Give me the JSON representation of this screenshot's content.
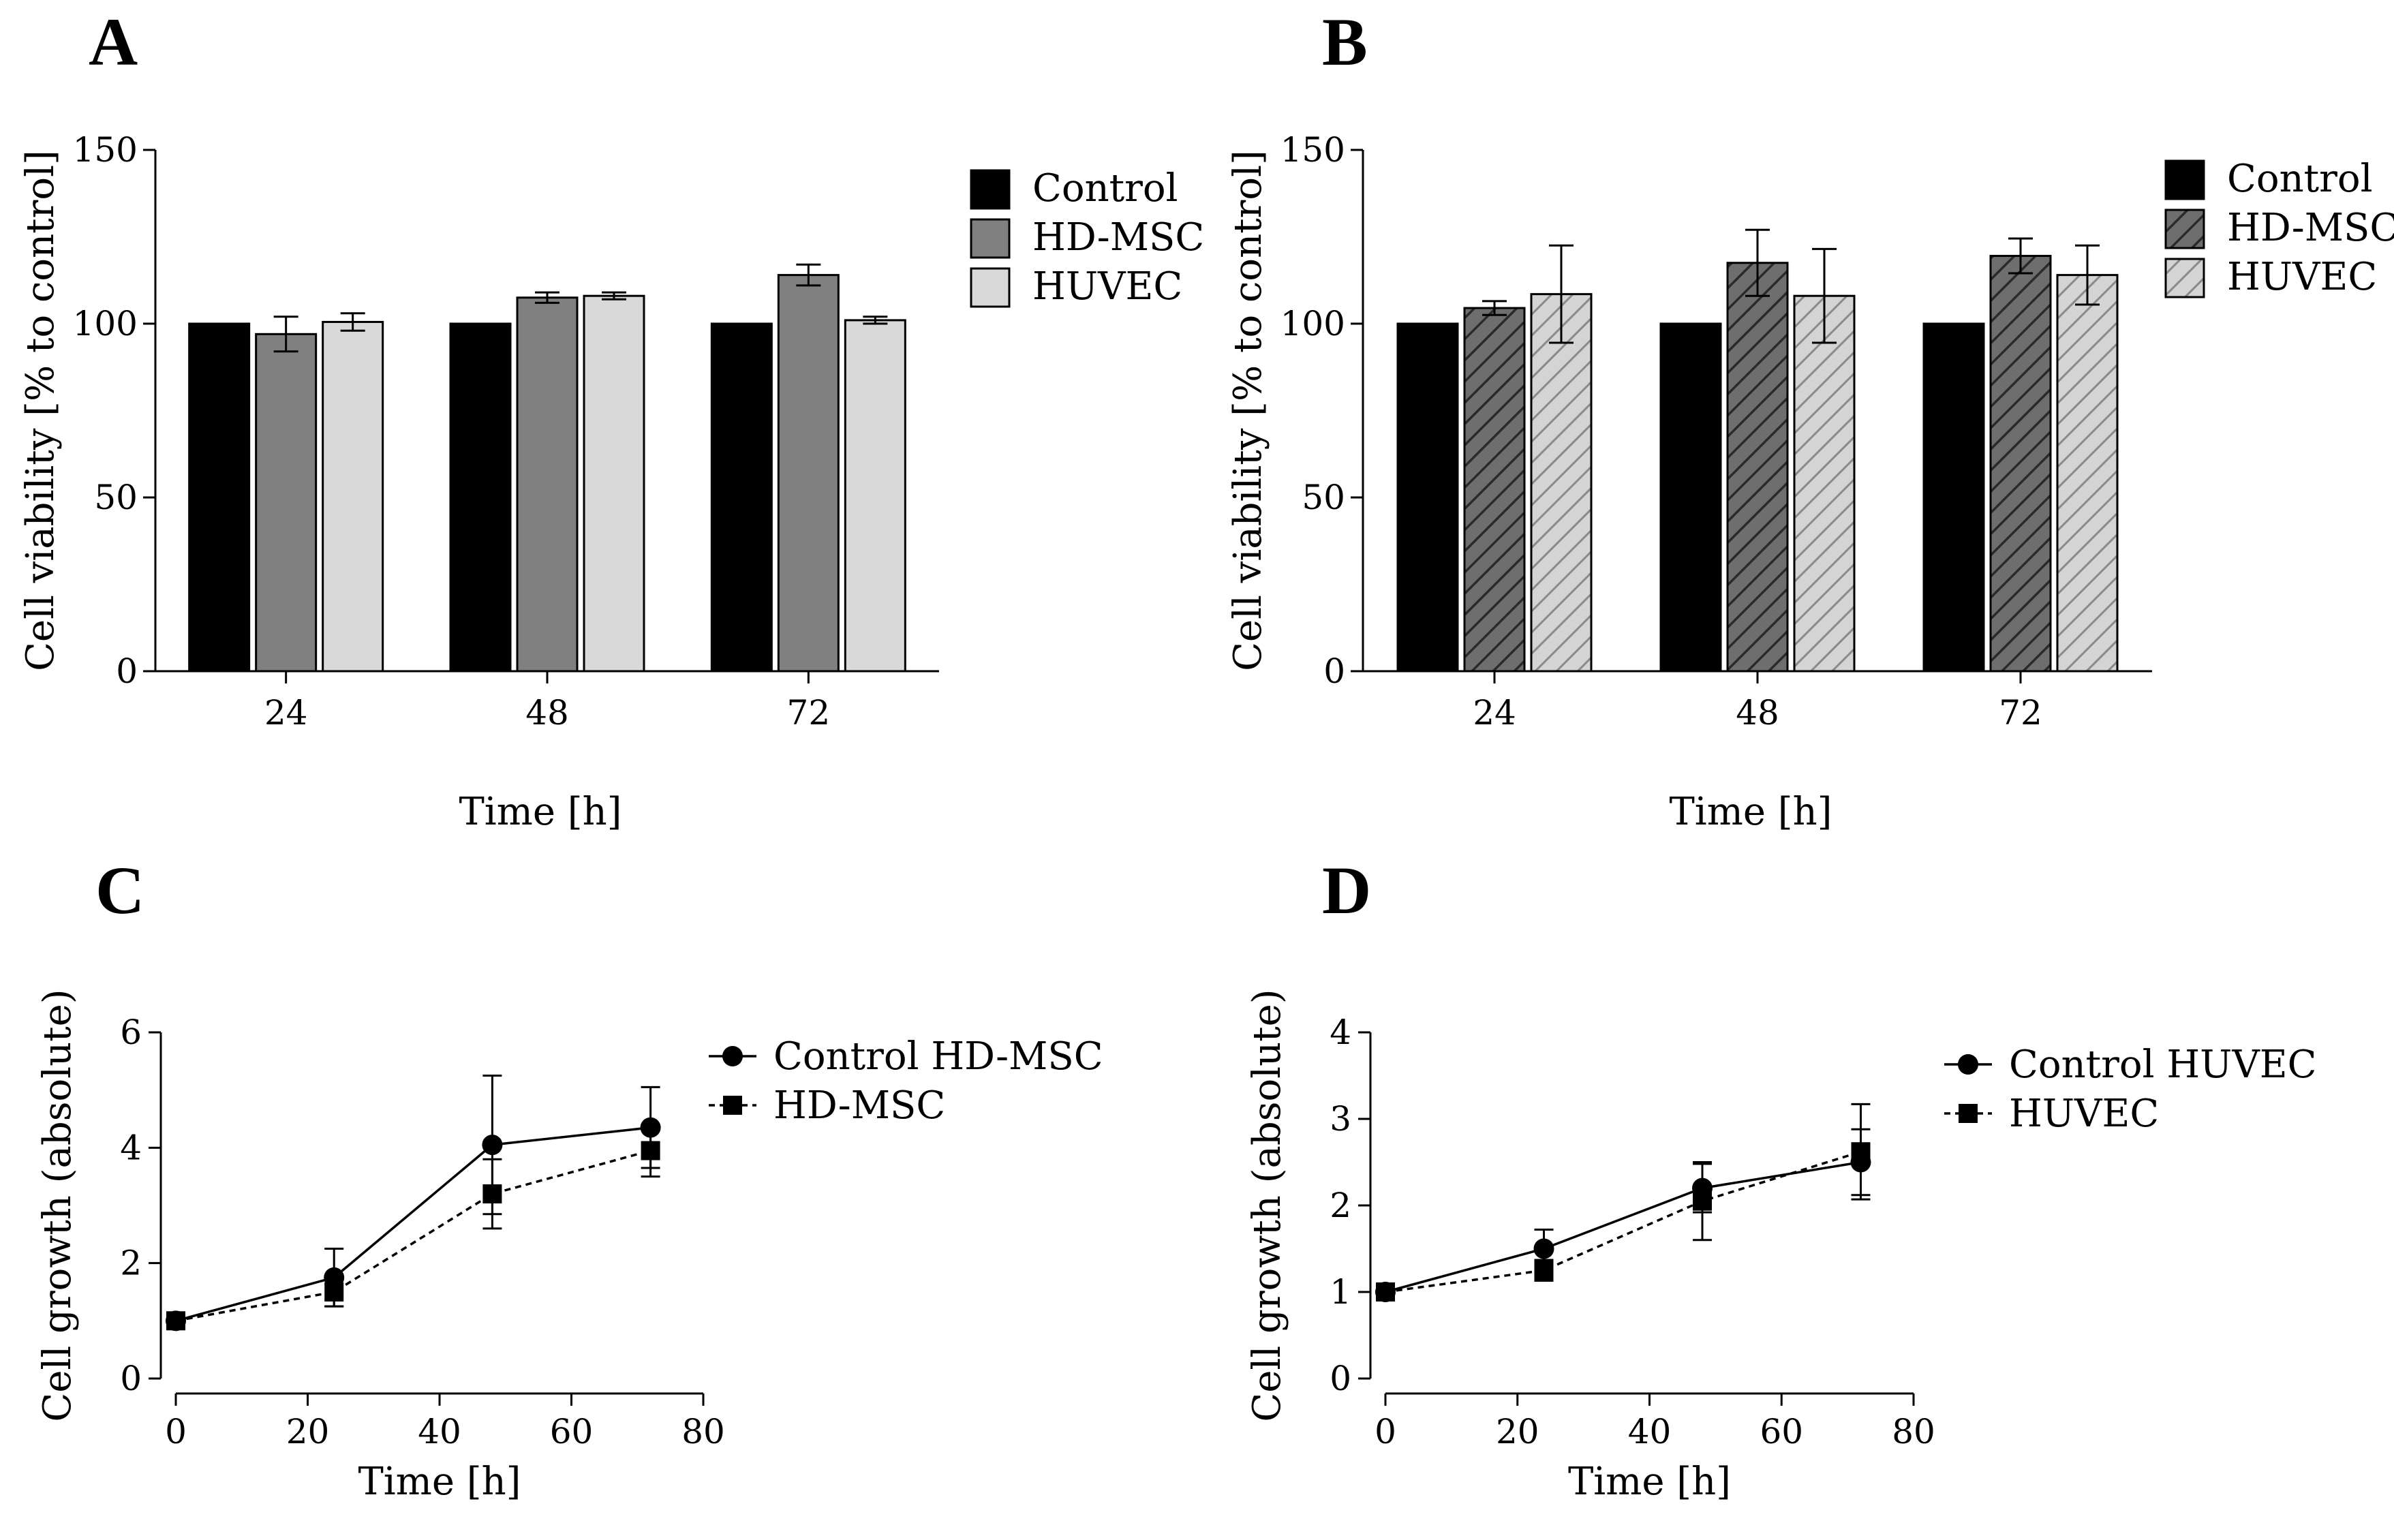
{
  "chart_data": [
    {
      "panel": "A",
      "type": "bar",
      "xlabel": "Time [h]",
      "ylabel": "Cell viability [% to control]",
      "ylim": [
        0,
        150
      ],
      "yticks": [
        "0",
        "50",
        "100",
        "150"
      ],
      "categories": [
        "24",
        "48",
        "72"
      ],
      "legend_position": "top-right",
      "series": [
        {
          "name": "Control",
          "fill": "#000000",
          "pattern": "solid",
          "values": [
            100,
            100,
            100
          ],
          "errors": [
            0,
            0,
            0
          ]
        },
        {
          "name": "HD-MSC",
          "fill": "#808080",
          "pattern": "solid",
          "values": [
            97,
            107.5,
            114
          ],
          "errors": [
            5,
            1.5,
            3
          ]
        },
        {
          "name": "HUVEC",
          "fill": "#d9d9d9",
          "pattern": "solid",
          "values": [
            100.5,
            108,
            101
          ],
          "errors": [
            2.5,
            1,
            1
          ]
        }
      ]
    },
    {
      "panel": "B",
      "type": "bar",
      "xlabel": "Time [h]",
      "ylabel": "Cell viability [% to control]",
      "ylim": [
        0,
        150
      ],
      "yticks": [
        "0",
        "50",
        "100",
        "150"
      ],
      "categories": [
        "24",
        "48",
        "72"
      ],
      "legend_position": "top-right",
      "series": [
        {
          "name": "Control",
          "fill": "#000000",
          "pattern": "solid",
          "values": [
            100,
            100,
            100
          ],
          "errors": [
            0,
            0,
            0
          ]
        },
        {
          "name": "HD-MSC",
          "fill": "#6e6e6e",
          "pattern": "hatch",
          "values": [
            104.5,
            117.5,
            119.5
          ],
          "errors": [
            2,
            9.5,
            5
          ]
        },
        {
          "name": "HUVEC",
          "fill": "#cfcfcf",
          "pattern": "hatch",
          "values": [
            108.5,
            108,
            114
          ],
          "errors": [
            14,
            13.5,
            8.5
          ]
        }
      ]
    },
    {
      "panel": "C",
      "type": "line",
      "xlabel": "Time [h]",
      "ylabel": "Cell growth (absolute)",
      "xlim": [
        0,
        80
      ],
      "ylim": [
        0,
        6
      ],
      "xticks": [
        "0",
        "20",
        "40",
        "60",
        "80"
      ],
      "yticks": [
        "0",
        "2",
        "4",
        "6"
      ],
      "legend_position": "top-right",
      "series": [
        {
          "name": "Control HD-MSC",
          "marker": "circle",
          "line": "solid",
          "x": [
            0,
            24,
            48,
            72
          ],
          "y": [
            1,
            1.75,
            4.05,
            4.35
          ],
          "errors": [
            0,
            0.5,
            1.2,
            0.7
          ]
        },
        {
          "name": "HD-MSC",
          "marker": "square",
          "line": "dashed",
          "x": [
            0,
            24,
            48,
            72
          ],
          "y": [
            1,
            1.5,
            3.2,
            3.95
          ],
          "errors": [
            0,
            0.25,
            0.6,
            0.45
          ]
        }
      ]
    },
    {
      "panel": "D",
      "type": "line",
      "xlabel": "Time [h]",
      "ylabel": "Cell growth (absolute)",
      "xlim": [
        0,
        80
      ],
      "ylim": [
        0,
        4
      ],
      "xticks": [
        "0",
        "20",
        "40",
        "60",
        "80"
      ],
      "yticks": [
        "0",
        "1",
        "2",
        "3",
        "4"
      ],
      "legend_position": "top-right",
      "series": [
        {
          "name": "Control HUVEC",
          "marker": "circle",
          "line": "solid",
          "x": [
            0,
            24,
            48,
            72
          ],
          "y": [
            1,
            1.5,
            2.2,
            2.5
          ],
          "errors": [
            0,
            0.22,
            0.28,
            0.38
          ]
        },
        {
          "name": "HUVEC",
          "marker": "square",
          "line": "dashed",
          "x": [
            0,
            24,
            48,
            72
          ],
          "y": [
            1,
            1.25,
            2.05,
            2.62
          ],
          "errors": [
            0,
            0.12,
            0.45,
            0.55
          ]
        }
      ]
    }
  ]
}
